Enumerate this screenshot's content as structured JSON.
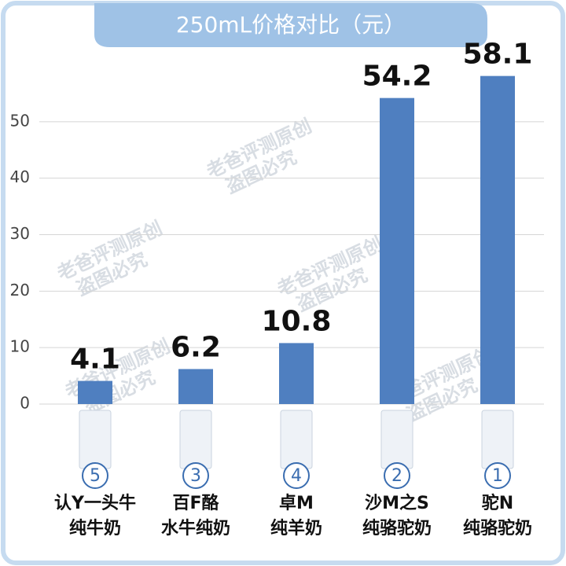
{
  "chart_data": {
    "type": "bar",
    "title": "250mL价格对比（元）",
    "categories": [
      [
        "认Y一头牛",
        "纯牛奶"
      ],
      [
        "百F酪",
        "水牛纯奶"
      ],
      [
        "卓M",
        "纯羊奶"
      ],
      [
        "沙M之S",
        "纯骆驼奶"
      ],
      [
        "驼N",
        "纯骆驼奶"
      ]
    ],
    "ranks": [
      5,
      3,
      4,
      2,
      1
    ],
    "values": [
      4.1,
      6.2,
      10.8,
      54.2,
      58.1
    ],
    "color": "#4f7fc0",
    "ylim": [
      0,
      60
    ],
    "yticks": [
      0,
      10,
      20,
      30,
      40,
      50
    ],
    "grid": true,
    "watermark": [
      "老爸评测原创",
      "盗图必究"
    ]
  }
}
